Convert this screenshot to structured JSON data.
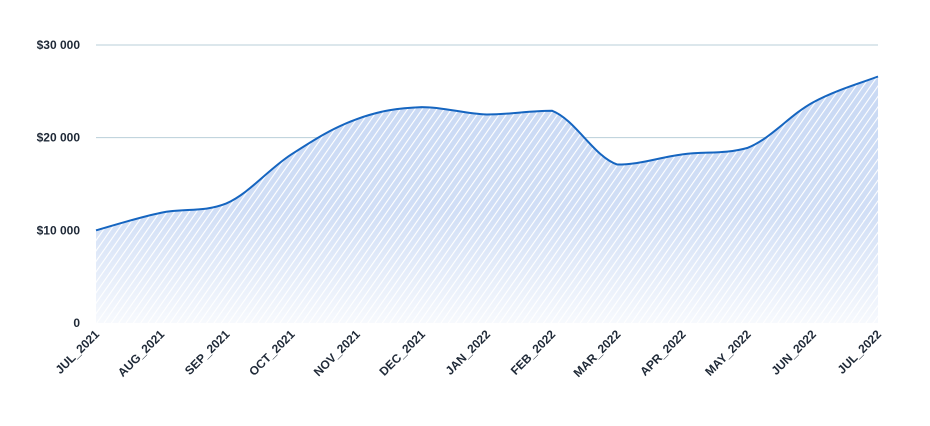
{
  "chart_data": {
    "type": "area",
    "categories": [
      "JUL_2021",
      "AUG_2021",
      "SEP_2021",
      "OCT_2021",
      "NOV_2021",
      "DEC_2021",
      "JAN_2022",
      "FEB_2022",
      "MAR_2022",
      "APR_2022",
      "MAY_2022",
      "JUN_2022",
      "JUL_2022"
    ],
    "series": [
      {
        "values": [
          10000,
          11900,
          12900,
          18200,
          22000,
          23300,
          22500,
          22900,
          17100,
          18200,
          18900,
          23800,
          26600
        ]
      }
    ],
    "ylim": [
      0,
      30000
    ],
    "yticks": [
      0,
      10000,
      20000,
      30000
    ],
    "ytick_labels": [
      "0",
      "$10 000",
      "$20 000",
      "$30 000"
    ],
    "grid": true,
    "legend": "none",
    "colors": {
      "line": "#1565c0",
      "fill": "#90b4ec",
      "grid": "#b9cfd9",
      "text": "#1f2937"
    }
  }
}
